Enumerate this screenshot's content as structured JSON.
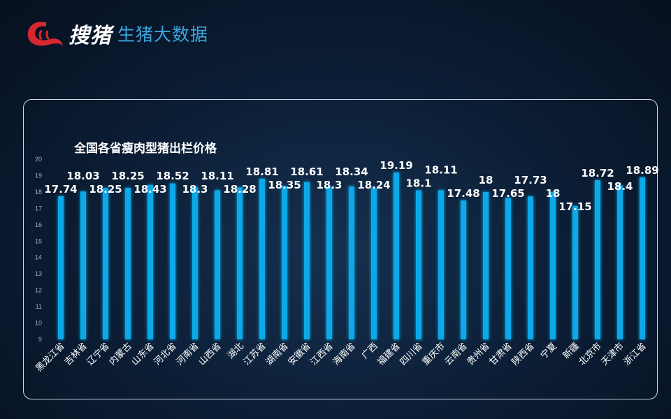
{
  "header": {
    "brand_calligraphy": "搜猪",
    "brand_subtitle": "生猪大数据",
    "logo_color": "#d7282f",
    "subtitle_color": "#3aa6dd"
  },
  "chart_data": {
    "type": "bar",
    "title": "全国各省瘦肉型猪出栏价格",
    "categories": [
      "黑龙江省",
      "吉林省",
      "辽宁省",
      "内蒙古",
      "山东省",
      "河北省",
      "河南省",
      "山西省",
      "湖北",
      "江苏省",
      "湖南省",
      "安徽省",
      "江西省",
      "海南省",
      "广西",
      "福建省",
      "四川省",
      "重庆市",
      "云南省",
      "贵州省",
      "甘肃省",
      "陕西省",
      "宁夏",
      "新疆",
      "北京市",
      "天津市",
      "浙江省"
    ],
    "values": [
      17.74,
      18.03,
      18.25,
      18.25,
      18.43,
      18.52,
      18.3,
      18.11,
      18.28,
      18.81,
      18.35,
      18.61,
      18.3,
      18.34,
      18.24,
      19.19,
      18.1,
      18.11,
      17.48,
      18,
      17.65,
      17.73,
      18,
      17.15,
      18.72,
      18.4,
      18.89
    ],
    "ylim": [
      9,
      20
    ],
    "yticks": [
      9,
      10,
      11,
      12,
      13,
      14,
      15,
      16,
      17,
      18,
      19,
      20
    ],
    "grid": false,
    "bar_color": "#0fa8e8",
    "label_color": "#ffffff"
  }
}
